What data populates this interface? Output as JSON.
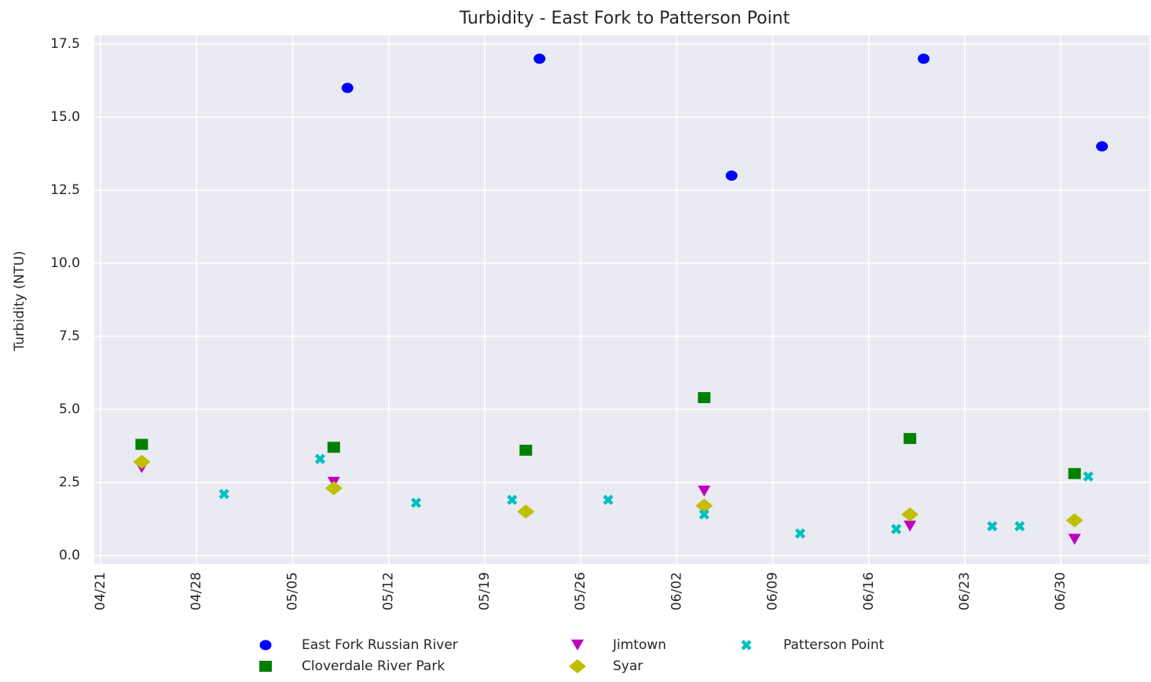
{
  "chart_data": {
    "type": "scatter",
    "title": "Turbidity - East Fork to Patterson Point",
    "ylabel": "Turbidity (NTU)",
    "xlim": [
      "04/21",
      "07/06"
    ],
    "xticks": [
      "04/21",
      "04/28",
      "05/05",
      "05/12",
      "05/19",
      "05/26",
      "06/02",
      "06/09",
      "06/16",
      "06/23",
      "06/30"
    ],
    "ylim": [
      -0.3,
      17.8
    ],
    "yticks": [
      {
        "value": 0,
        "label": "0.0"
      },
      {
        "value": 2.5,
        "label": "2.5"
      },
      {
        "value": 5,
        "label": "5.0"
      },
      {
        "value": 7.5,
        "label": "7.5"
      },
      {
        "value": 10,
        "label": "10.0"
      },
      {
        "value": 12.5,
        "label": "12.5"
      },
      {
        "value": 15,
        "label": "15.0"
      },
      {
        "value": 17.5,
        "label": "17.5"
      }
    ],
    "grid": true,
    "legend": "bottom",
    "series": [
      {
        "name": "East Fork Russian River",
        "color": "#0000ff",
        "marker": "circle",
        "x": [
          "05/09",
          "05/23",
          "06/06",
          "06/20",
          "07/03"
        ],
        "values": [
          16,
          17,
          13,
          17,
          14
        ]
      },
      {
        "name": "Cloverdale River Park",
        "color": "#008000",
        "marker": "square",
        "x": [
          "04/24",
          "05/08",
          "05/22",
          "06/04",
          "06/19",
          "07/01"
        ],
        "values": [
          3.8,
          3.7,
          3.6,
          5.4,
          4.0,
          2.8
        ]
      },
      {
        "name": "Jimtown",
        "color": "#bf00bf",
        "marker": "triangle-down",
        "x": [
          "04/24",
          "05/08",
          "06/04",
          "06/19",
          "07/01"
        ],
        "values": [
          3.0,
          2.5,
          2.2,
          1.0,
          0.55
        ]
      },
      {
        "name": "Syar",
        "color": "#bfbf00",
        "marker": "diamond",
        "x": [
          "04/24",
          "05/08",
          "05/22",
          "06/04",
          "06/19",
          "07/01"
        ],
        "values": [
          3.2,
          2.3,
          1.5,
          1.7,
          1.4,
          1.2
        ]
      },
      {
        "name": "Patterson Point",
        "color": "#00bfbf",
        "marker": "x",
        "x": [
          "04/30",
          "05/07",
          "05/14",
          "05/21",
          "05/28",
          "06/04",
          "06/11",
          "06/18",
          "06/25",
          "06/27",
          "07/02"
        ],
        "values": [
          2.1,
          3.3,
          1.8,
          1.9,
          1.9,
          1.4,
          0.75,
          0.9,
          1.0,
          1.0,
          2.7
        ]
      }
    ]
  }
}
